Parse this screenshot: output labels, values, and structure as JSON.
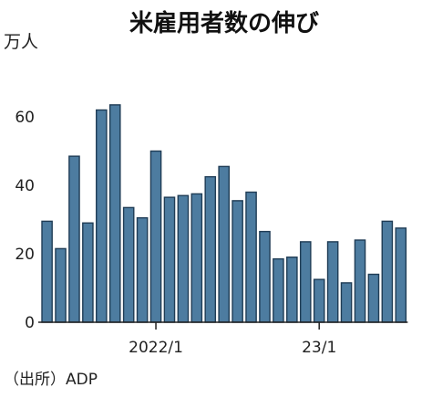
{
  "chart_data": {
    "type": "bar",
    "title": "米雇用者数の伸び",
    "unit_label": "万人",
    "source": "（出所）ADP",
    "ylim": [
      0,
      80
    ],
    "y_ticks": [
      0,
      20,
      40,
      60
    ],
    "x_tick_labels": [
      {
        "label": "2022/1",
        "index": 8
      },
      {
        "label": "23/1",
        "index": 20
      }
    ],
    "values": [
      29.5,
      21.5,
      48.5,
      29,
      62,
      63.5,
      33.5,
      30.5,
      50,
      36.5,
      37,
      37.5,
      42.5,
      45.5,
      35.5,
      38,
      26.5,
      18.5,
      19,
      23.5,
      12.5,
      23.5,
      11.5,
      24,
      14,
      29.5,
      27.5
    ],
    "bar_color": "#4d7ca0",
    "grid": false
  }
}
